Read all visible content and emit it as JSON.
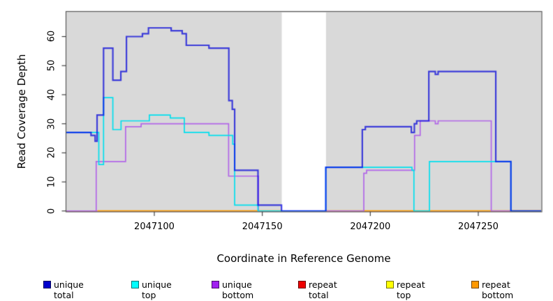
{
  "chart_data": {
    "type": "line",
    "subtype": "step",
    "title": "",
    "xlabel": "Coordinate in Reference Genome",
    "ylabel": "Read Coverage Depth",
    "xlim": [
      2047059.3,
      2047279.1
    ],
    "ylim": [
      0,
      68.5
    ],
    "x_ticks": [
      2047100,
      2047150,
      2047200,
      2047250
    ],
    "y_ticks": [
      0,
      10,
      20,
      30,
      40,
      50,
      60
    ],
    "grid": false,
    "plot_bg": "#d9d9d9",
    "page_bg": "#ffffff",
    "box_color": "#595959",
    "mask_region": {
      "x0": 2047159.0,
      "x1": 2047179.5,
      "color": "#ffffff"
    },
    "legend_position": "bottom",
    "series": [
      {
        "name": "repeat total",
        "color": "#e8203c",
        "legend_fill": "#ee0000",
        "width": 2,
        "segments": [
          [
            [
              2047059.3,
              0
            ],
            [
              2047158.9,
              0
            ]
          ],
          [
            [
              2047179.4,
              0
            ],
            [
              2047279.1,
              0
            ]
          ]
        ]
      },
      {
        "name": "repeat top",
        "color": "#ffee00",
        "legend_fill": "#ffff00",
        "width": 1.6,
        "segments": [
          [
            [
              2047073.8,
              0
            ],
            [
              2047158.9,
              0
            ]
          ],
          [
            [
              2047179.4,
              0
            ],
            [
              2047279.1,
              0
            ]
          ]
        ]
      },
      {
        "name": "repeat bottom",
        "color": "#ff9d00",
        "legend_fill": "#ff9900",
        "width": 2,
        "segments": [
          [
            [
              2047073.8,
              0
            ],
            [
              2047158.9,
              0
            ]
          ],
          [
            [
              2047179.4,
              0
            ],
            [
              2047279.1,
              0
            ]
          ]
        ]
      },
      {
        "name": "unique bottom",
        "color": "#b266e8",
        "legend_fill": "#a020f0",
        "width": 1.7,
        "segments": [
          [
            [
              2047059.3,
              0
            ],
            [
              2047073.1,
              17
            ],
            [
              2047086.7,
              29
            ],
            [
              2047093.9,
              30
            ],
            [
              2047134.4,
              12
            ],
            [
              2047148.2,
              0
            ],
            [
              2047197.0,
              13
            ],
            [
              2047198.3,
              14
            ],
            [
              2047220.5,
              26
            ],
            [
              2047223.1,
              31
            ],
            [
              2047230.1,
              30
            ],
            [
              2047231.4,
              31
            ],
            [
              2047256.0,
              0
            ],
            [
              2047279.1,
              0
            ]
          ]
        ]
      },
      {
        "name": "unique top",
        "color": "#00dfee",
        "legend_fill": "#00ffff",
        "width": 1.7,
        "segments": [
          [
            [
              2047059.3,
              27
            ],
            [
              2047074.3,
              16
            ],
            [
              2047076.5,
              39
            ],
            [
              2047080.8,
              28
            ],
            [
              2047084.6,
              31
            ],
            [
              2047097.7,
              33
            ],
            [
              2047107.4,
              32
            ],
            [
              2047113.9,
              27
            ],
            [
              2047125.3,
              26
            ],
            [
              2047136.3,
              23
            ],
            [
              2047137.2,
              2
            ],
            [
              2047148.0,
              0
            ],
            [
              2047179.4,
              15
            ],
            [
              2047219.3,
              14
            ],
            [
              2047220.2,
              0
            ],
            [
              2047227.4,
              17
            ],
            [
              2047265.1,
              0
            ],
            [
              2047279.1,
              0
            ]
          ]
        ]
      },
      {
        "name": "unique total",
        "color": "#4646ff",
        "legend_fill": "#0000cd",
        "width": 2.2,
        "blend": "multiply",
        "segments": [
          [
            [
              2047059.3,
              27
            ],
            [
              2047070.7,
              26
            ],
            [
              2047072.6,
              24
            ],
            [
              2047073.5,
              33
            ],
            [
              2047076.5,
              56
            ],
            [
              2047080.8,
              45
            ],
            [
              2047084.5,
              48
            ],
            [
              2047087.1,
              60
            ],
            [
              2047094.5,
              61
            ],
            [
              2047097.3,
              63
            ],
            [
              2047107.8,
              62
            ],
            [
              2047112.9,
              61
            ],
            [
              2047114.8,
              57
            ],
            [
              2047125.3,
              56
            ],
            [
              2047134.5,
              38
            ],
            [
              2047136.1,
              35
            ],
            [
              2047137.2,
              14
            ],
            [
              2047148.0,
              2
            ],
            [
              2047158.9,
              0
            ],
            [
              2047179.4,
              15
            ],
            [
              2047196.3,
              28
            ],
            [
              2047197.7,
              29
            ],
            [
              2047219.0,
              27
            ],
            [
              2047220.4,
              30
            ],
            [
              2047221.5,
              31
            ],
            [
              2047227.1,
              48
            ],
            [
              2047230.1,
              47
            ],
            [
              2047231.4,
              48
            ],
            [
              2047258.1,
              17
            ],
            [
              2047265.1,
              0
            ],
            [
              2047279.1,
              0
            ]
          ]
        ]
      }
    ],
    "legend": [
      {
        "label": "unique total",
        "fill": "#0000cd"
      },
      {
        "label": "unique top",
        "fill": "#00ffff"
      },
      {
        "label": "unique bottom",
        "fill": "#a020f0"
      },
      {
        "label": "repeat total",
        "fill": "#ee0000"
      },
      {
        "label": "repeat top",
        "fill": "#ffff00"
      },
      {
        "label": "repeat bottom",
        "fill": "#ff9900"
      }
    ]
  }
}
